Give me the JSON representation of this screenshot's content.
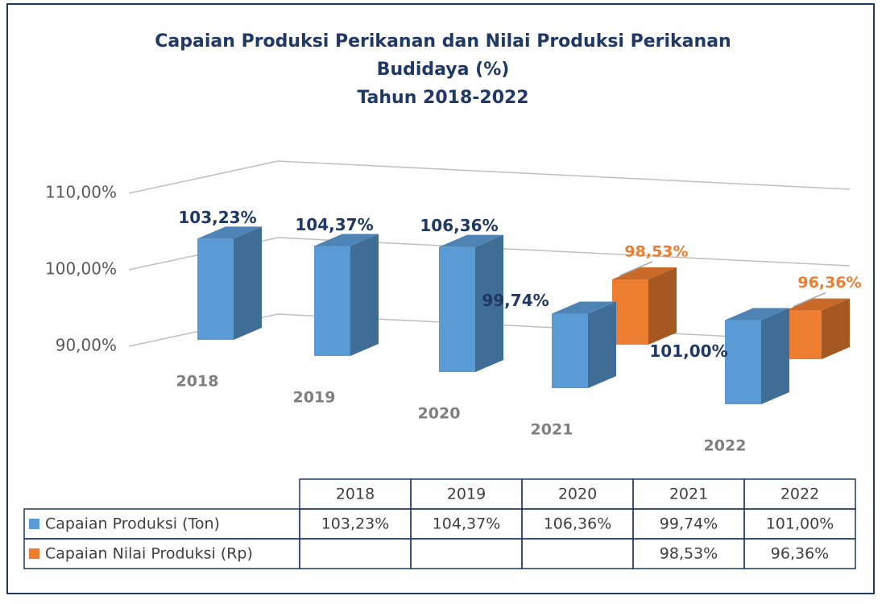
{
  "chart_data": {
    "type": "bar",
    "title": "Capaian Produksi Perikanan dan Nilai Produksi Perikanan Budidaya (%)",
    "subtitle": "Tahun 2018-2022",
    "categories": [
      "2018",
      "2019",
      "2020",
      "2021",
      "2022"
    ],
    "series": [
      {
        "name": "Capaian Produksi (Ton)",
        "color": "#5b9bd5",
        "label_color": "#1f3864",
        "values": [
          103.23,
          104.37,
          106.36,
          99.74,
          101.0
        ],
        "value_labels": [
          "103,23%",
          "104,37%",
          "106,36%",
          "99,74%",
          "101,00%"
        ]
      },
      {
        "name": "Capaian Nilai Produksi (Rp)",
        "color": "#ed7d31",
        "label_color": "#ed7d31",
        "values": [
          null,
          null,
          null,
          98.53,
          96.36
        ],
        "value_labels": [
          null,
          null,
          null,
          "98,53%",
          "96,36%"
        ]
      }
    ],
    "ylim": [
      90,
      110
    ],
    "yticks": [
      {
        "value": 90,
        "label": "90,00%"
      },
      {
        "value": 100,
        "label": "100,00%"
      },
      {
        "value": 110,
        "label": "110,00%"
      }
    ],
    "grid": true
  }
}
